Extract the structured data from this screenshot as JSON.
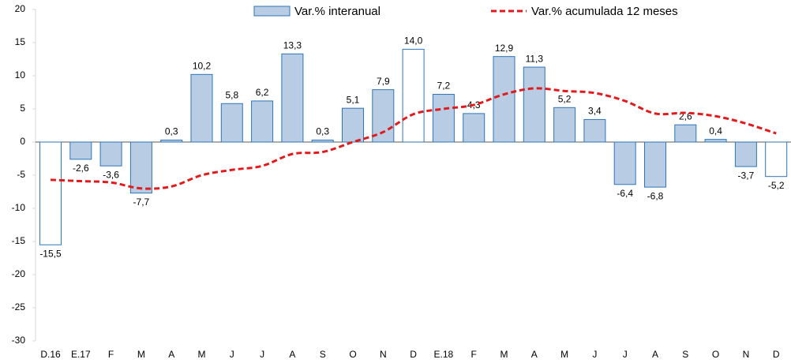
{
  "chart_data": {
    "type": "bar",
    "categories": [
      "D.16",
      "E.17",
      "F",
      "M",
      "A",
      "M",
      "J",
      "J",
      "A",
      "S",
      "O",
      "N",
      "D",
      "E.18",
      "F",
      "M",
      "A",
      "M",
      "J",
      "J",
      "A",
      "S",
      "O",
      "N",
      "D"
    ],
    "series": [
      {
        "name": "Var.% interanual",
        "type": "bar",
        "color": "#b8cce4",
        "stroke": "#2e75b6",
        "colors": [
          "#ffffff",
          "#b8cce4",
          "#b8cce4",
          "#b8cce4",
          "#b8cce4",
          "#b8cce4",
          "#b8cce4",
          "#b8cce4",
          "#b8cce4",
          "#b8cce4",
          "#b8cce4",
          "#b8cce4",
          "#ffffff",
          "#b8cce4",
          "#b8cce4",
          "#b8cce4",
          "#b8cce4",
          "#b8cce4",
          "#b8cce4",
          "#b8cce4",
          "#b8cce4",
          "#b8cce4",
          "#b8cce4",
          "#b8cce4",
          "#ffffff"
        ],
        "values": [
          -15.5,
          -2.6,
          -3.6,
          -7.7,
          0.3,
          10.2,
          5.8,
          6.2,
          13.3,
          0.3,
          5.1,
          7.9,
          14.0,
          7.2,
          4.3,
          12.9,
          11.3,
          5.2,
          3.4,
          -6.4,
          -6.8,
          2.6,
          0.4,
          -3.7,
          -5.2
        ],
        "value_labels": [
          "-15,5",
          "-2,6",
          "-3,6",
          "-7,7",
          "0,3",
          "10,2",
          "5,8",
          "6,2",
          "13,3",
          "0,3",
          "5,1",
          "7,9",
          "14,0",
          "7,2",
          "4,3",
          "12,9",
          "11,3",
          "5,2",
          "3,4",
          "-6,4",
          "-6,8",
          "2,6",
          "0,4",
          "-3,7",
          "-5,2"
        ]
      },
      {
        "name": "Var.% acumulada 12 meses",
        "type": "line",
        "color": "#e31a1c",
        "values": [
          -5.7,
          -5.9,
          -6.1,
          -7.0,
          -6.7,
          -5.0,
          -4.2,
          -3.6,
          -1.8,
          -1.5,
          0.0,
          1.5,
          4.2,
          5.0,
          5.6,
          7.2,
          8.1,
          7.7,
          7.4,
          6.2,
          4.3,
          4.4,
          3.9,
          2.8,
          1.3
        ]
      }
    ],
    "ylim": [
      -30,
      20
    ],
    "yticks": [
      -30,
      -25,
      -20,
      -15,
      -10,
      -5,
      0,
      5,
      10,
      15,
      20
    ]
  }
}
